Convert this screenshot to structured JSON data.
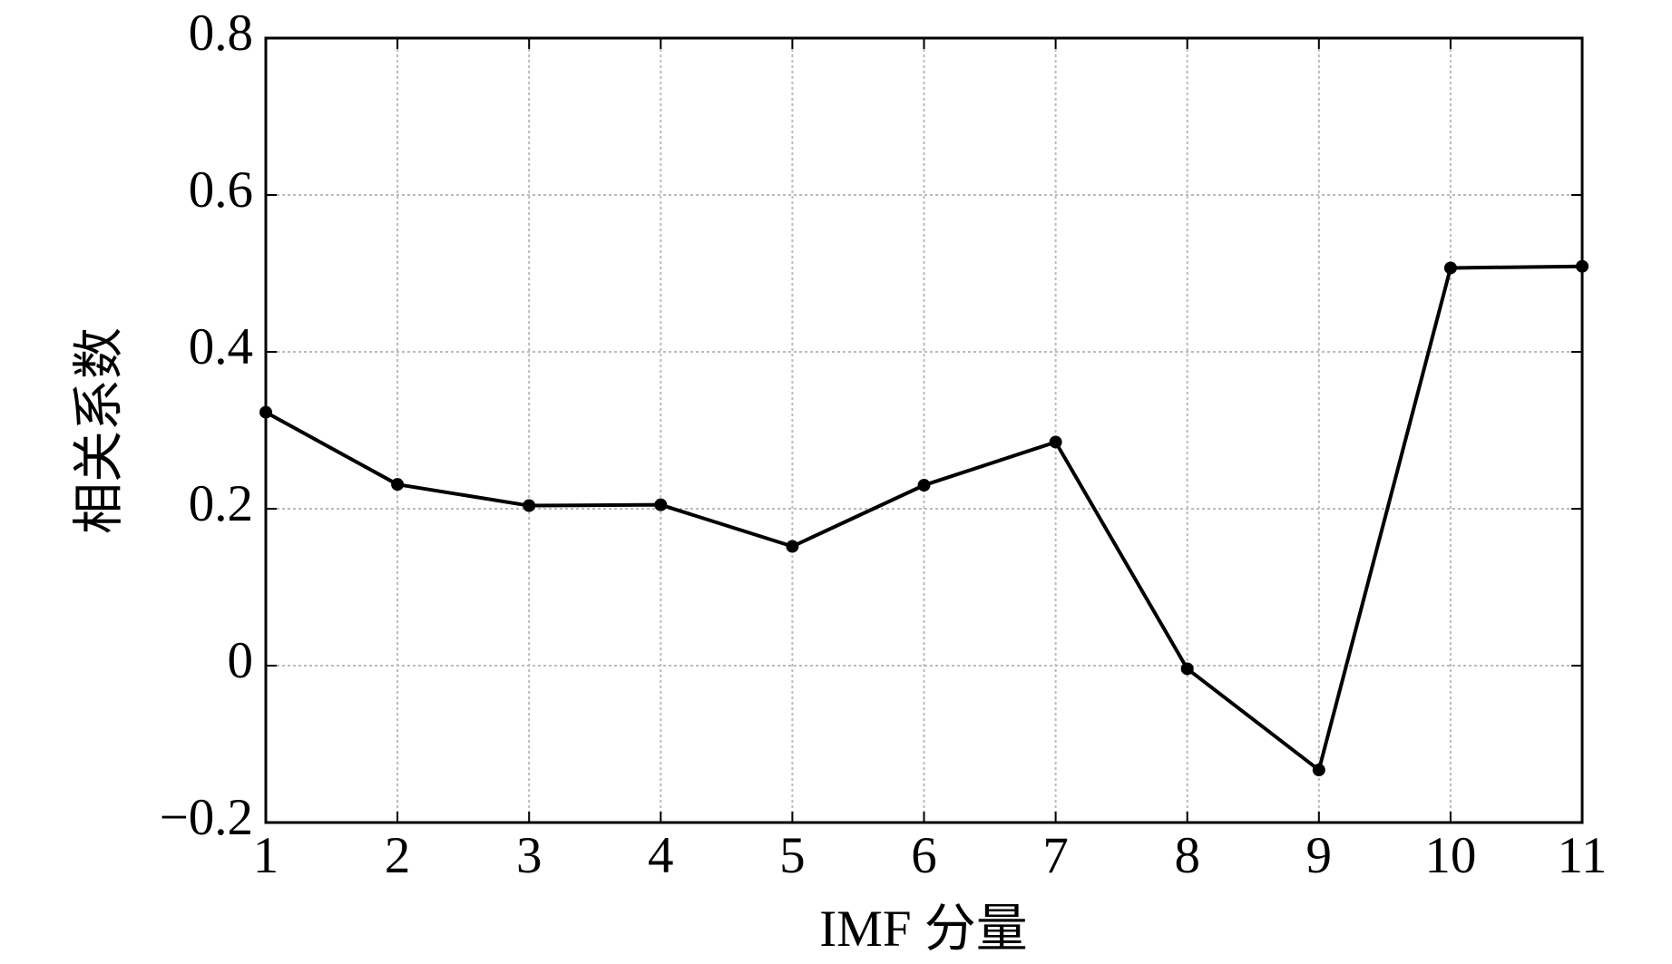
{
  "chart_data": {
    "type": "line",
    "x_label": "IMF 分量",
    "y_label": "相关系数",
    "x": [
      1,
      2,
      3,
      4,
      5,
      6,
      7,
      8,
      9,
      10,
      11
    ],
    "values": [
      0.323,
      0.231,
      0.204,
      0.205,
      0.152,
      0.23,
      0.285,
      -0.004,
      -0.133,
      0.507,
      0.509
    ],
    "color": "#000000",
    "xlim": [
      1,
      11
    ],
    "xticks": [
      1,
      2,
      3,
      4,
      5,
      6,
      7,
      8,
      9,
      10,
      11
    ],
    "ylim": [
      -0.2,
      0.8
    ],
    "yticks": [
      {
        "value": -0.2,
        "label": "−0.2"
      },
      0,
      0.2,
      0.4,
      0.6,
      0.8
    ],
    "grid": true
  }
}
